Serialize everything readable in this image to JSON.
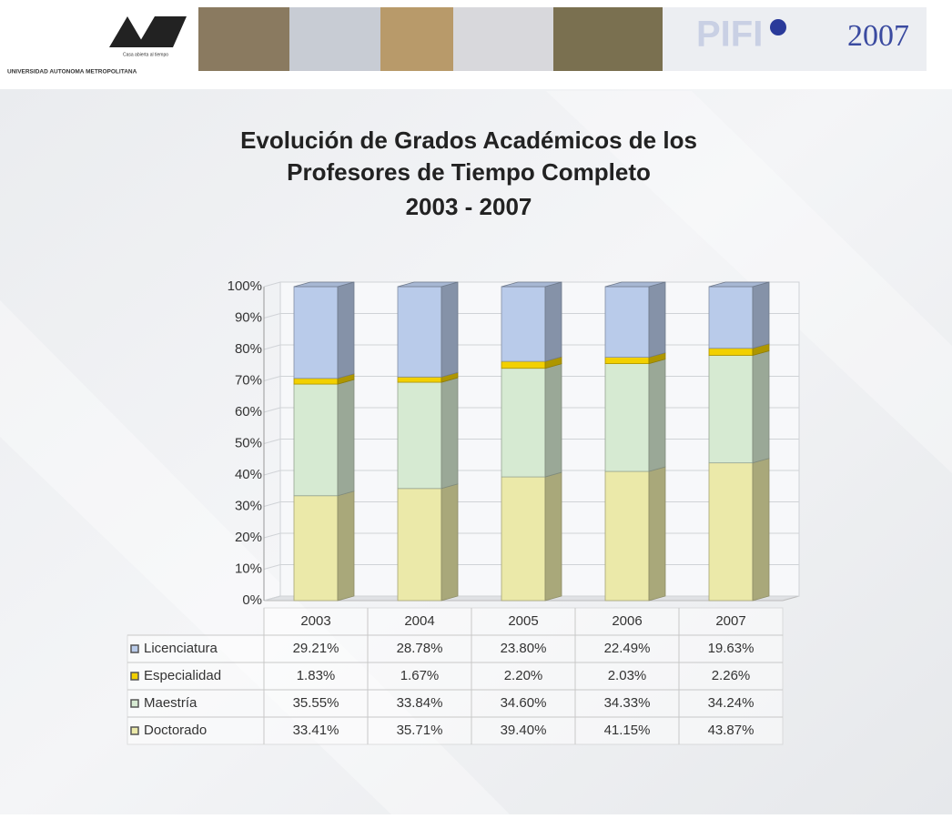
{
  "header": {
    "university": "UNIVERSIDAD AUTONOMA METROPOLITANA",
    "motto": "Casa abierta al tiempo",
    "program": "PIFI",
    "year": "2007"
  },
  "chart_data": {
    "type": "stacked-bar-3d",
    "title": [
      "Evolución de Grados Académicos de los",
      "Profesores de Tiempo Completo",
      "2003 - 2007"
    ],
    "categories": [
      "2003",
      "2004",
      "2005",
      "2006",
      "2007"
    ],
    "series": [
      {
        "name": "Licenciatura",
        "color": "#b9cbea",
        "values": [
          29.21,
          28.78,
          23.8,
          22.49,
          19.63
        ],
        "value_labels": [
          "29.21%",
          "28.78%",
          "23.80%",
          "22.49%",
          "19.63%"
        ]
      },
      {
        "name": "Especialidad",
        "color": "#f2d000",
        "values": [
          1.83,
          1.67,
          2.2,
          2.03,
          2.26
        ],
        "value_labels": [
          "1.83%",
          "1.67%",
          "2.20%",
          "2.03%",
          "2.26%"
        ]
      },
      {
        "name": "Maestría",
        "color": "#d6ead2",
        "values": [
          35.55,
          33.84,
          34.6,
          34.33,
          34.24
        ],
        "value_labels": [
          "35.55%",
          "33.84%",
          "34.60%",
          "34.33%",
          "34.24%"
        ]
      },
      {
        "name": "Doctorado",
        "color": "#ebe9a9",
        "values": [
          33.41,
          35.71,
          39.4,
          41.15,
          43.87
        ],
        "value_labels": [
          "33.41%",
          "35.71%",
          "39.40%",
          "41.15%",
          "43.87%"
        ]
      }
    ],
    "ylim": [
      0,
      100
    ],
    "yticks": [
      {
        "value": 0,
        "label": "0%"
      },
      {
        "value": 10,
        "label": "10%"
      },
      {
        "value": 20,
        "label": "20%"
      },
      {
        "value": 30,
        "label": "30%"
      },
      {
        "value": 40,
        "label": "40%"
      },
      {
        "value": 50,
        "label": "50%"
      },
      {
        "value": 60,
        "label": "60%"
      },
      {
        "value": 70,
        "label": "70%"
      },
      {
        "value": 80,
        "label": "80%"
      },
      {
        "value": 90,
        "label": "90%"
      },
      {
        "value": 100,
        "label": "100%"
      }
    ],
    "grid": true
  }
}
